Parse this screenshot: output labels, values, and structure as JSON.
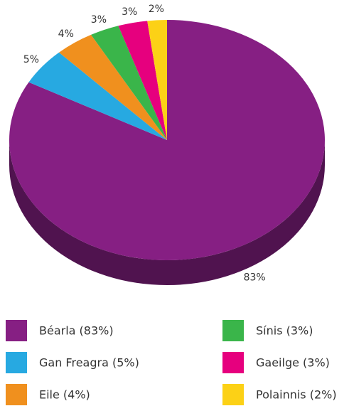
{
  "chart_data": {
    "type": "pie",
    "categories": [
      "Béarla (83%)",
      "Gan Freagra (5%)",
      "Eile (4%)",
      "Sínis (3%)",
      "Gaeilge (3%)",
      "Polainnis (2%)"
    ],
    "values": [
      83,
      5,
      4,
      3,
      3,
      2
    ],
    "value_labels": [
      "83%",
      "5%",
      "4%",
      "3%",
      "3%",
      "2%"
    ],
    "colors": [
      "#861f83",
      "#27a9e1",
      "#f0901e",
      "#3ab54a",
      "#e6007e",
      "#fcd116"
    ]
  }
}
